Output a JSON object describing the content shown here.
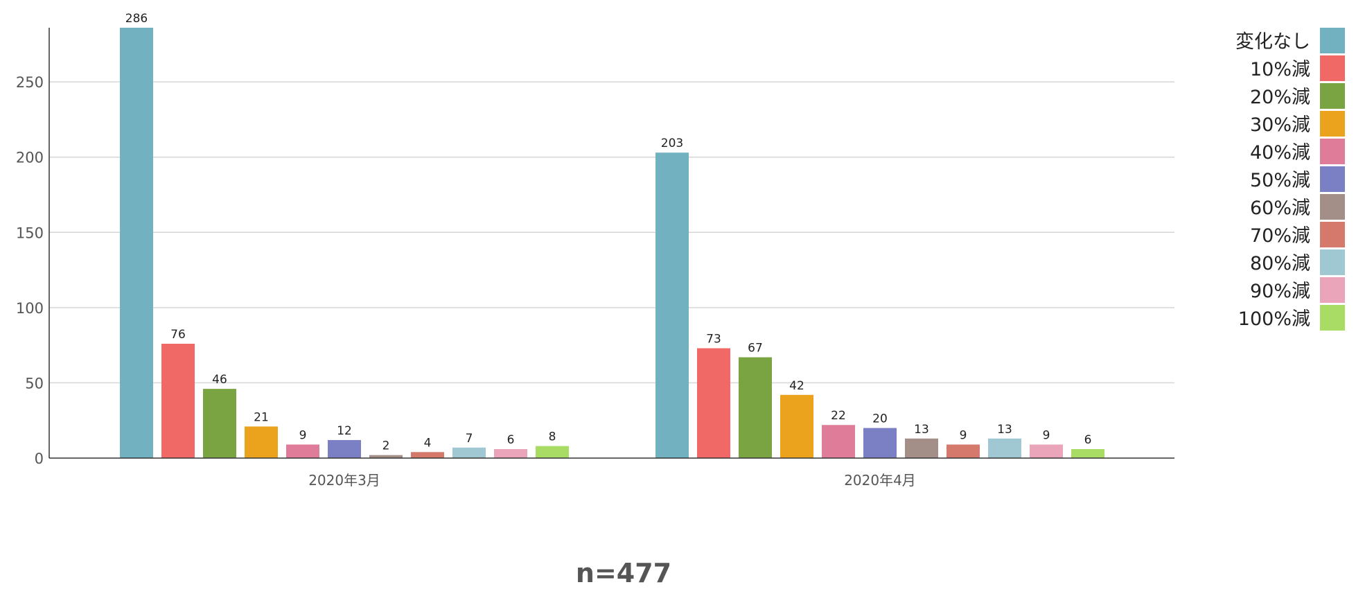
{
  "chart_data": {
    "type": "bar",
    "categories": [
      "2020年3月",
      "2020年4月"
    ],
    "series": [
      {
        "name": "変化なし",
        "color": "#72b1c0",
        "values": [
          286,
          203
        ]
      },
      {
        "name": "10%減",
        "color": "#f06966",
        "values": [
          76,
          73
        ]
      },
      {
        "name": "20%減",
        "color": "#7aa442",
        "values": [
          46,
          67
        ]
      },
      {
        "name": "30%減",
        "color": "#eba31d",
        "values": [
          21,
          42
        ]
      },
      {
        "name": "40%減",
        "color": "#df7c9a",
        "values": [
          9,
          22
        ]
      },
      {
        "name": "50%減",
        "color": "#7b80c4",
        "values": [
          12,
          20
        ]
      },
      {
        "name": "60%減",
        "color": "#a38f88",
        "values": [
          2,
          13
        ]
      },
      {
        "name": "70%減",
        "color": "#d4796c",
        "values": [
          4,
          9
        ]
      },
      {
        "name": "80%減",
        "color": "#9fc8d2",
        "values": [
          7,
          13
        ]
      },
      {
        "name": "90%減",
        "color": "#eaa5bb",
        "values": [
          6,
          9
        ]
      },
      {
        "name": "100%減",
        "color": "#a8dc64",
        "values": [
          8,
          6
        ]
      }
    ],
    "yticks": [
      0,
      50,
      100,
      150,
      200,
      250
    ],
    "ylim": [
      0,
      286
    ],
    "grid": true,
    "legend": "right",
    "note": "n=477"
  }
}
